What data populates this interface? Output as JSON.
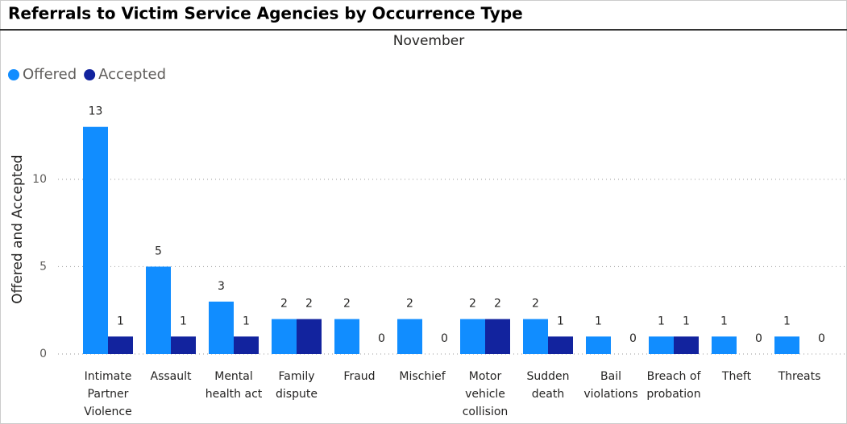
{
  "chart_data": {
    "type": "bar",
    "title": "Referrals to Victim Service Agencies by Occurrence Type",
    "subtitle": "November",
    "y_label": "Offered and Accepted",
    "categories": [
      "Intimate Partner Violence",
      "Assault",
      "Mental health act",
      "Family dispute",
      "Fraud",
      "Mischief",
      "Motor vehicle collision",
      "Sudden death",
      "Bail violations",
      "Breach of probation",
      "Theft",
      "Threats"
    ],
    "series": [
      {
        "name": "Offered",
        "color": "#118dff",
        "values": [
          13,
          5,
          3,
          2,
          2,
          2,
          2,
          2,
          1,
          1,
          1,
          1
        ]
      },
      {
        "name": "Accepted",
        "color": "#12239e",
        "values": [
          1,
          1,
          1,
          2,
          0,
          0,
          2,
          1,
          0,
          1,
          0,
          0
        ]
      }
    ],
    "ylim": [
      0,
      14
    ],
    "yticks": [
      0,
      5,
      10
    ],
    "grid": true,
    "legend": "top-left"
  }
}
